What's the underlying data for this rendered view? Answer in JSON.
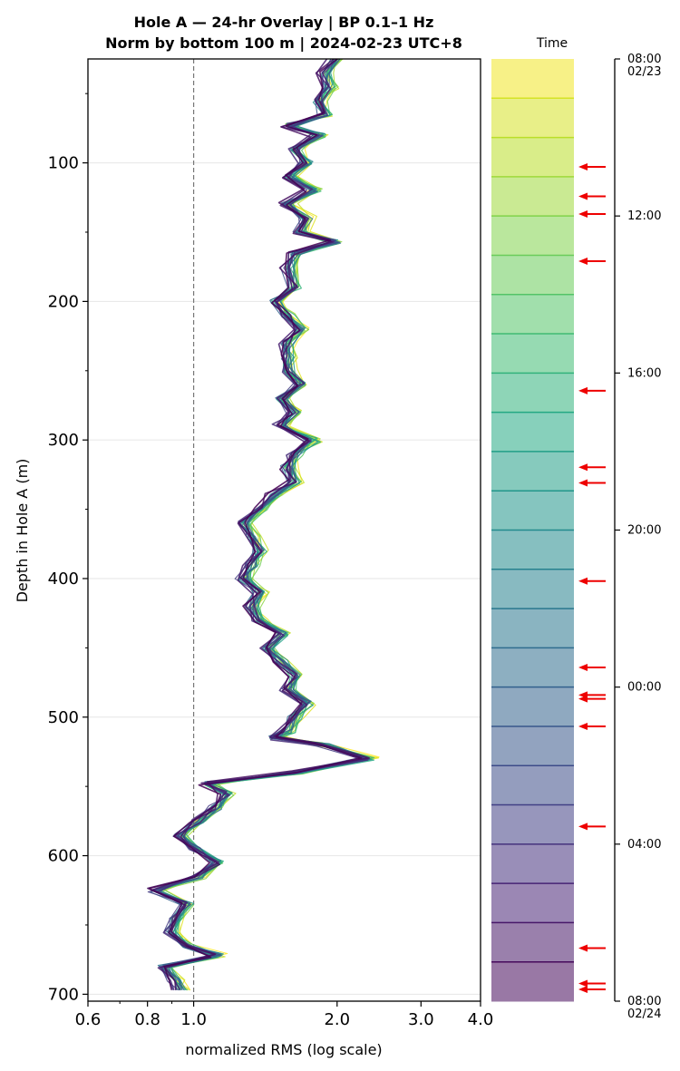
{
  "chart_data": {
    "type": "line",
    "title": "Hole A — 24-hr Overlay  |  BP 0.1–1 Hz",
    "subtitle": "Norm by bottom 100 m  |  2024-02-23 UTC+8",
    "xlabel": "normalized RMS  (log scale)",
    "ylabel": "Depth in Hole A (m)",
    "x_scale": "log",
    "xlim": [
      0.6,
      4.0
    ],
    "ylim": [
      705,
      25
    ],
    "x_ticks": [
      "0.6",
      "0.8",
      "1.0",
      "2.0",
      "3.0",
      "4.0"
    ],
    "x_tick_values": [
      0.6,
      0.8,
      1.0,
      2.0,
      3.0,
      4.0
    ],
    "y_ticks": [
      "100",
      "200",
      "300",
      "400",
      "500",
      "600",
      "700"
    ],
    "y_tick_values": [
      100,
      200,
      300,
      400,
      500,
      600,
      700
    ],
    "reference_line_x": 1.0,
    "grid": "horizontal",
    "n_traces": 24,
    "depth_profile": {
      "depth": [
        25,
        35,
        45,
        55,
        65,
        73,
        80,
        90,
        100,
        110,
        120,
        130,
        140,
        150,
        157,
        165,
        175,
        190,
        200,
        210,
        220,
        230,
        240,
        250,
        260,
        270,
        280,
        290,
        300,
        310,
        320,
        330,
        340,
        350,
        360,
        370,
        380,
        390,
        400,
        410,
        420,
        430,
        440,
        450,
        460,
        470,
        480,
        490,
        500,
        510,
        515,
        520,
        530,
        540,
        548,
        555,
        565,
        575,
        585,
        595,
        605,
        615,
        625,
        635,
        645,
        655,
        665,
        672,
        680,
        690,
        697
      ],
      "rms": [
        1.95,
        1.85,
        1.9,
        1.8,
        1.85,
        1.55,
        1.8,
        1.6,
        1.7,
        1.55,
        1.75,
        1.55,
        1.7,
        1.65,
        1.95,
        1.6,
        1.55,
        1.6,
        1.45,
        1.55,
        1.65,
        1.55,
        1.55,
        1.55,
        1.65,
        1.5,
        1.6,
        1.5,
        1.75,
        1.6,
        1.55,
        1.6,
        1.45,
        1.35,
        1.25,
        1.3,
        1.35,
        1.3,
        1.25,
        1.35,
        1.3,
        1.35,
        1.5,
        1.4,
        1.5,
        1.6,
        1.55,
        1.7,
        1.6,
        1.55,
        1.45,
        1.85,
        2.3,
        1.6,
        1.05,
        1.15,
        1.1,
        1.0,
        0.92,
        1.0,
        1.1,
        1.0,
        0.82,
        0.95,
        0.9,
        0.88,
        0.95,
        1.1,
        0.85,
        0.9,
        0.92
      ]
    },
    "colorbar": {
      "title": "Time",
      "ticks": [
        {
          "label": "08:00",
          "label2": "02/23",
          "hour": 0
        },
        {
          "label": "12:00",
          "label2": "",
          "hour": 4
        },
        {
          "label": "16:00",
          "label2": "",
          "hour": 8
        },
        {
          "label": "20:00",
          "label2": "",
          "hour": 12
        },
        {
          "label": "00:00",
          "label2": "",
          "hour": 16
        },
        {
          "label": "04:00",
          "label2": "",
          "hour": 20
        },
        {
          "label": "08:00",
          "label2": "02/24",
          "hour": 24
        }
      ],
      "colormap": "viridis",
      "event_arrows_hour": [
        2.75,
        3.5,
        3.95,
        5.15,
        8.45,
        10.4,
        10.8,
        13.3,
        15.5,
        16.2,
        16.3,
        17.0,
        19.55,
        22.65,
        23.55,
        23.7
      ]
    }
  }
}
